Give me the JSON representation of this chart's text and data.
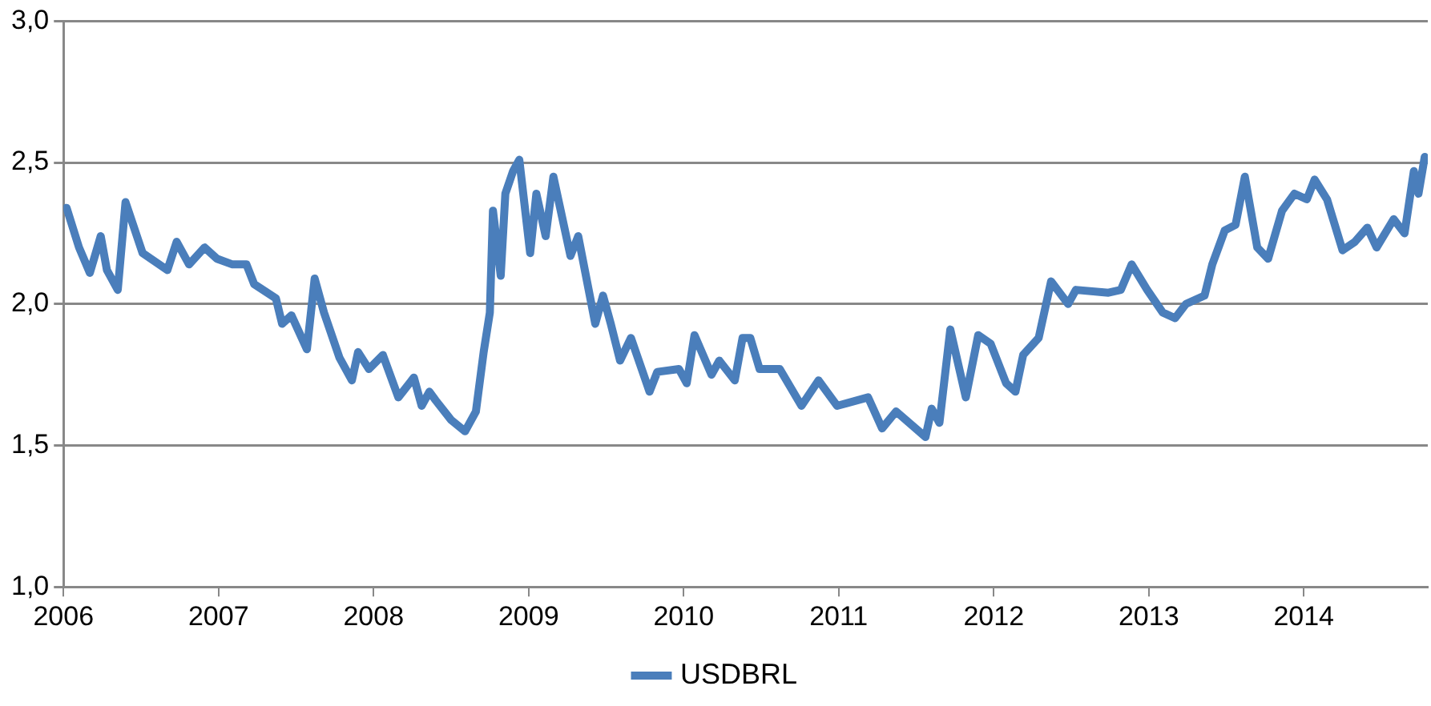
{
  "chart_data": {
    "type": "line",
    "xlim": [
      2006,
      2014.8
    ],
    "xticks": [
      2006,
      2007,
      2008,
      2009,
      2010,
      2011,
      2012,
      2013,
      2014
    ],
    "ylim": [
      1,
      3
    ],
    "yticks": [
      {
        "value": 1,
        "label": "1,0"
      },
      {
        "value": 1.5,
        "label": "1,5"
      },
      {
        "value": 2,
        "label": "2,0"
      },
      {
        "value": 2.5,
        "label": "2,5"
      },
      {
        "value": 3,
        "label": "3,0"
      }
    ],
    "grid": "y",
    "legend": "bottom",
    "marker": "none",
    "line_style": "solid",
    "series": [
      {
        "name": "USDBRL",
        "color": "#4a7ebb",
        "x": [
          2006.02,
          2006.1,
          2006.17,
          2006.24,
          2006.28,
          2006.35,
          2006.4,
          2006.51,
          2006.67,
          2006.73,
          2006.81,
          2006.91,
          2006.99,
          2007.09,
          2007.18,
          2007.23,
          2007.37,
          2007.41,
          2007.47,
          2007.57,
          2007.62,
          2007.68,
          2007.78,
          2007.86,
          2007.9,
          2007.97,
          2008.06,
          2008.16,
          2008.26,
          2008.31,
          2008.36,
          2008.4,
          2008.5,
          2008.59,
          2008.66,
          2008.71,
          2008.75,
          2008.77,
          2008.82,
          2008.85,
          2008.9,
          2008.94,
          2009.01,
          2009.05,
          2009.11,
          2009.16,
          2009.27,
          2009.32,
          2009.43,
          2009.48,
          2009.53,
          2009.59,
          2009.66,
          2009.78,
          2009.83,
          2009.97,
          2010.02,
          2010.07,
          2010.18,
          2010.23,
          2010.33,
          2010.38,
          2010.43,
          2010.49,
          2010.62,
          2010.76,
          2010.87,
          2010.99,
          2011.19,
          2011.28,
          2011.37,
          2011.56,
          2011.6,
          2011.65,
          2011.72,
          2011.82,
          2011.9,
          2011.98,
          2012.08,
          2012.14,
          2012.19,
          2012.29,
          2012.37,
          2012.48,
          2012.53,
          2012.74,
          2012.82,
          2012.89,
          2012.99,
          2013.09,
          2013.17,
          2013.24,
          2013.36,
          2013.41,
          2013.49,
          2013.56,
          2013.62,
          2013.7,
          2013.77,
          2013.86,
          2013.94,
          2014.02,
          2014.07,
          2014.15,
          2014.25,
          2014.33,
          2014.41,
          2014.47,
          2014.58,
          2014.65,
          2014.71,
          2014.74,
          2014.78
        ],
        "values": [
          2.34,
          2.2,
          2.11,
          2.24,
          2.12,
          2.05,
          2.36,
          2.18,
          2.12,
          2.22,
          2.14,
          2.2,
          2.16,
          2.14,
          2.14,
          2.07,
          2.02,
          1.93,
          1.96,
          1.84,
          2.09,
          1.97,
          1.81,
          1.73,
          1.83,
          1.77,
          1.82,
          1.67,
          1.74,
          1.64,
          1.69,
          1.66,
          1.59,
          1.55,
          1.62,
          1.83,
          1.97,
          2.33,
          2.1,
          2.39,
          2.47,
          2.51,
          2.18,
          2.39,
          2.24,
          2.45,
          2.17,
          2.24,
          1.93,
          2.03,
          1.93,
          1.8,
          1.88,
          1.69,
          1.76,
          1.77,
          1.72,
          1.89,
          1.75,
          1.8,
          1.73,
          1.88,
          1.88,
          1.77,
          1.77,
          1.64,
          1.73,
          1.64,
          1.67,
          1.56,
          1.62,
          1.53,
          1.63,
          1.58,
          1.91,
          1.67,
          1.89,
          1.86,
          1.72,
          1.69,
          1.82,
          1.88,
          2.08,
          2,
          2.05,
          2.04,
          2.05,
          2.14,
          2.05,
          1.97,
          1.95,
          2,
          2.03,
          2.14,
          2.26,
          2.28,
          2.45,
          2.2,
          2.16,
          2.33,
          2.39,
          2.37,
          2.44,
          2.37,
          2.19,
          2.22,
          2.27,
          2.2,
          2.3,
          2.25,
          2.47,
          2.39,
          2.52
        ]
      }
    ]
  }
}
